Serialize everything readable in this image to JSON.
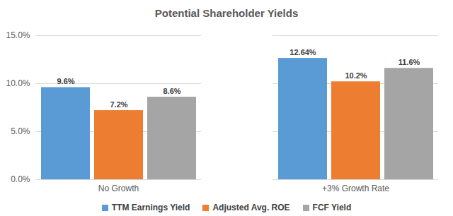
{
  "chart_data": {
    "type": "bar",
    "title": "Potential Shareholder Yields",
    "categories": [
      "No Growth",
      "+3% Growth Rate"
    ],
    "series": [
      {
        "name": "TTM Earnings Yield",
        "color": "#5b9bd5",
        "values": [
          9.6,
          12.64
        ],
        "value_labels": [
          "9.6%",
          "12.64%"
        ]
      },
      {
        "name": "Adjusted Avg. ROE",
        "color": "#ed7d31",
        "values": [
          7.2,
          10.2
        ],
        "value_labels": [
          "7.2%",
          "10.2%"
        ]
      },
      {
        "name": "FCF Yield",
        "color": "#a5a5a5",
        "values": [
          8.6,
          11.6
        ],
        "value_labels": [
          "8.6%",
          "11.6%"
        ]
      }
    ],
    "ylim": [
      0,
      15
    ],
    "yticks": [
      {
        "value": 0,
        "label": "0.0%"
      },
      {
        "value": 5,
        "label": "5.0%"
      },
      {
        "value": 10,
        "label": "10.0%"
      },
      {
        "value": 15,
        "label": "15.0%"
      }
    ],
    "grid": true,
    "legend": "bottom",
    "data_labels": true
  }
}
